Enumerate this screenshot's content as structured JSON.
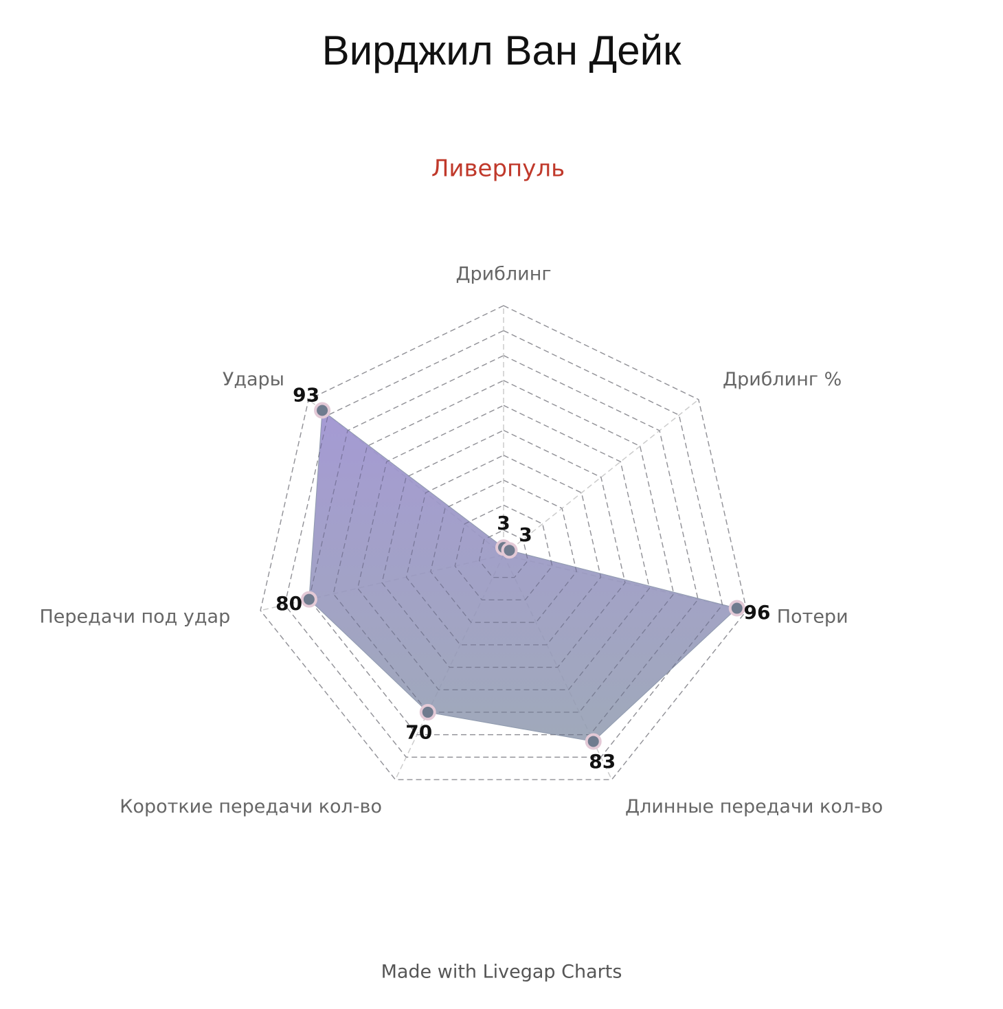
{
  "chart_data": {
    "type": "radar",
    "title": "Вирджил Ван Дейк",
    "subtitle": "Ливерпуль",
    "footer": "Made with Livegap Charts",
    "categories": [
      "Дриблинг",
      "Дриблинг %",
      "Потери",
      "Длинные передачи кол-во",
      "Короткие передачи кол-во",
      "Передачи под удар",
      "Удары"
    ],
    "series": [
      {
        "name": "Вирджил Ван Дейк",
        "color": "#8f9aae",
        "values": [
          3,
          3,
          96,
          83,
          70,
          80,
          93
        ]
      }
    ],
    "rlim": [
      0,
      100
    ],
    "rticks": [
      10,
      20,
      30,
      40,
      50,
      60,
      70,
      80,
      90,
      100
    ],
    "grid": true
  }
}
